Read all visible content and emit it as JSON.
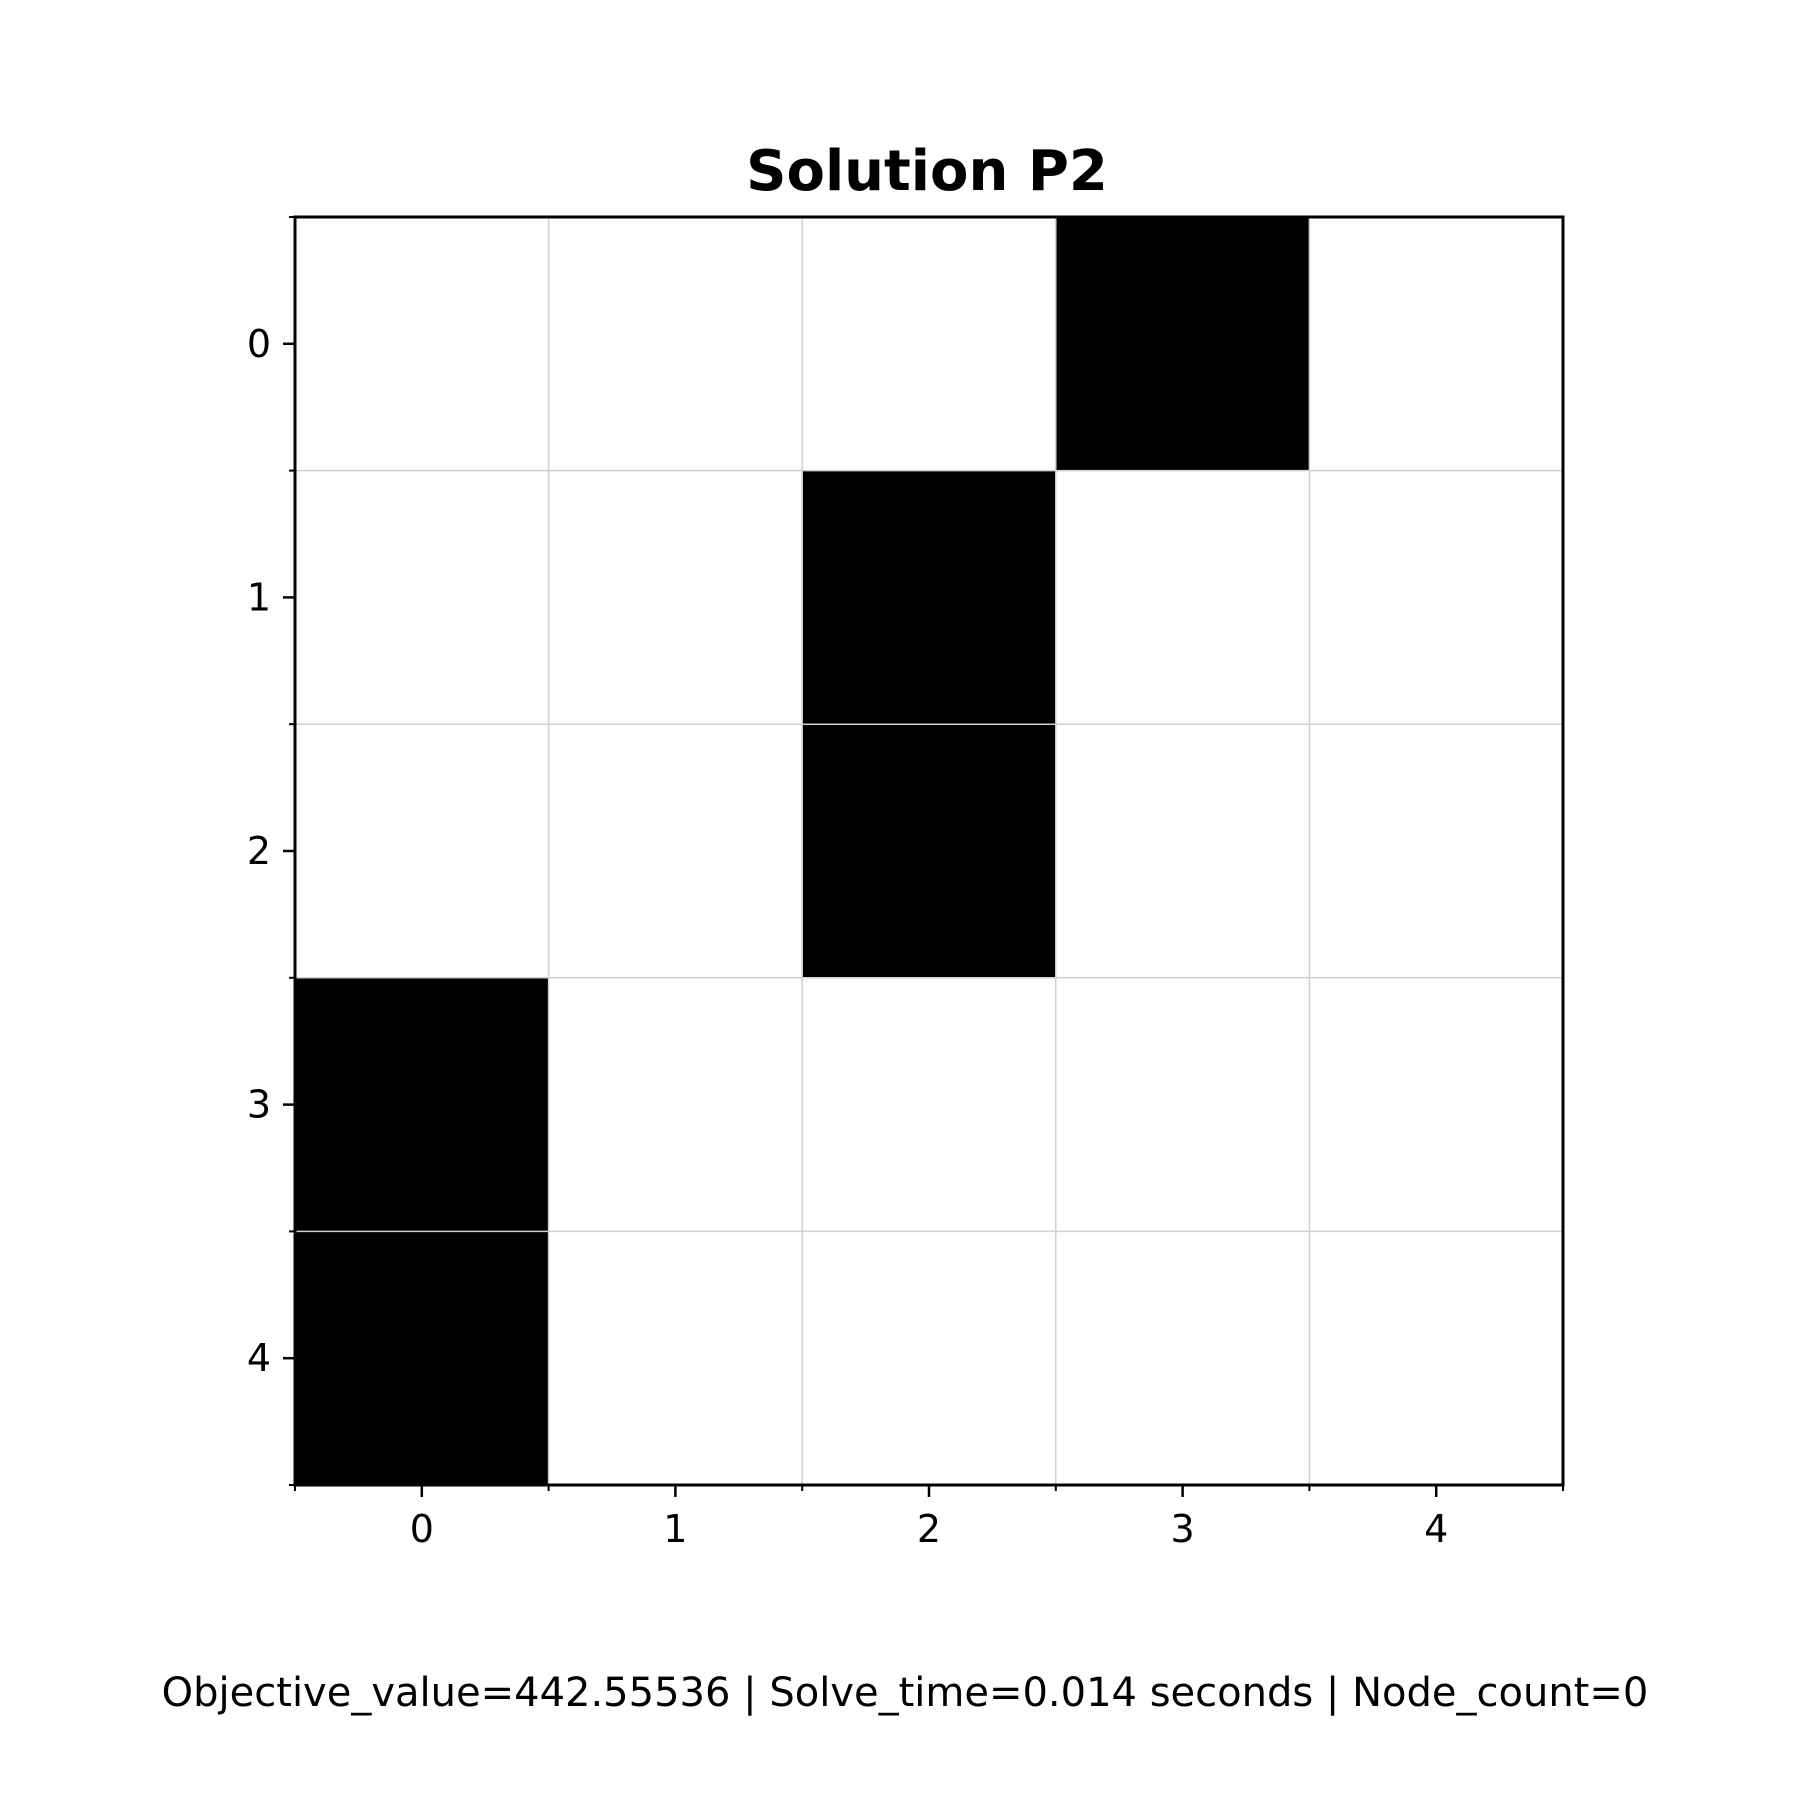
{
  "chart_data": {
    "type": "heatmap",
    "title": "Solution P2",
    "xlabel": "",
    "ylabel": "",
    "x_ticks": [
      "0",
      "1",
      "2",
      "3",
      "4"
    ],
    "y_ticks": [
      "0",
      "1",
      "2",
      "3",
      "4"
    ],
    "grid": true,
    "colormap": {
      "0": "#ffffff",
      "1": "#000000"
    },
    "matrix": [
      [
        0,
        0,
        0,
        1,
        0
      ],
      [
        0,
        0,
        1,
        0,
        0
      ],
      [
        0,
        0,
        1,
        0,
        0
      ],
      [
        1,
        0,
        0,
        0,
        0
      ],
      [
        1,
        0,
        0,
        0,
        0
      ]
    ]
  },
  "footer": "Objective_value=442.55536 | Solve_time=0.014 seconds | Node_count=0"
}
